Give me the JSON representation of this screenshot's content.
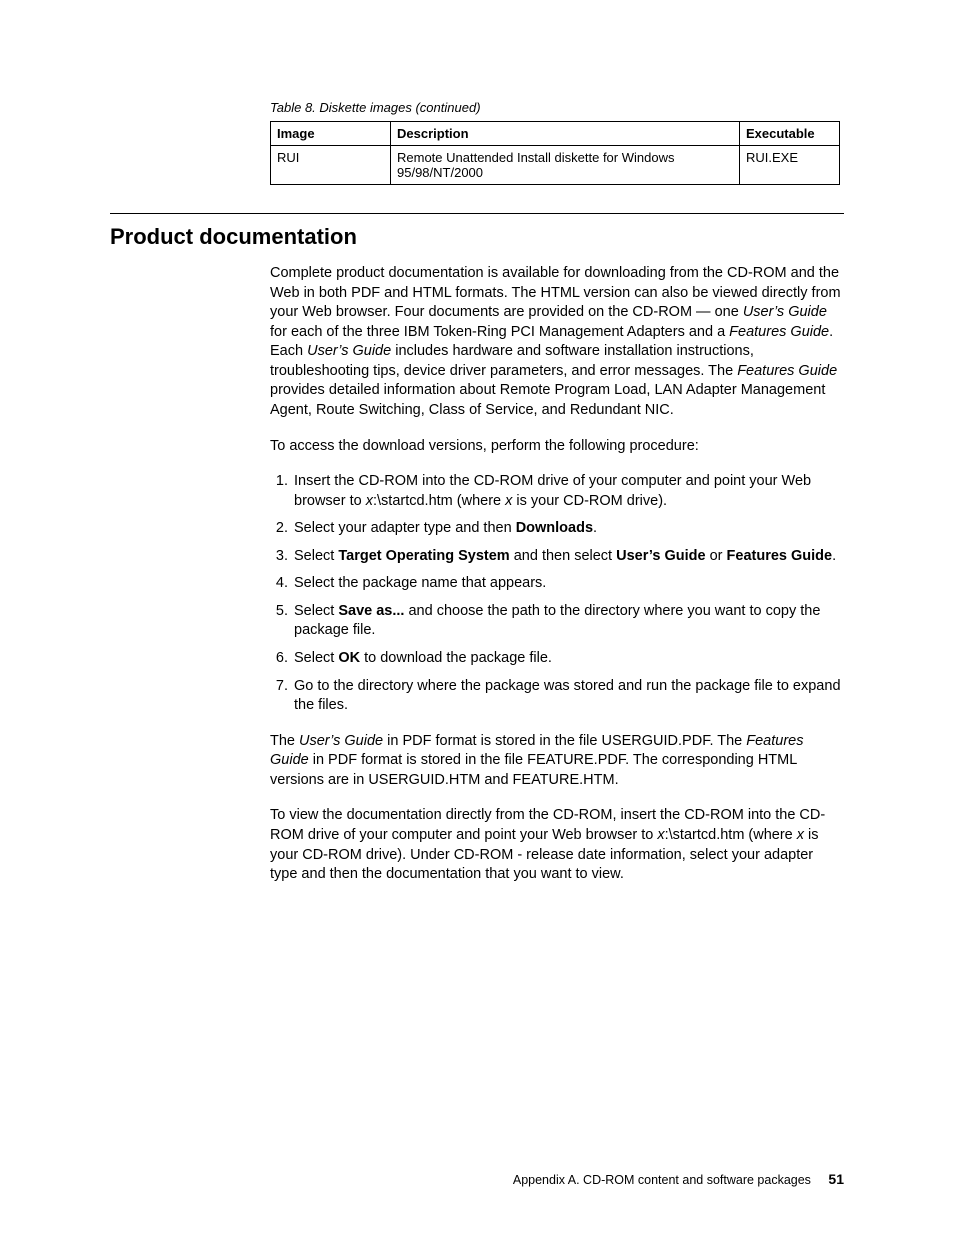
{
  "table": {
    "caption": "Table 8. Diskette images  (continued)",
    "headers": {
      "image": "Image",
      "description": "Description",
      "executable": "Executable"
    },
    "row": {
      "image": "RUI",
      "description": "Remote Unattended Install diskette for Windows 95/98/NT/2000",
      "executable": "RUI.EXE"
    }
  },
  "section": {
    "title": "Product documentation",
    "p1_a": "Complete product documentation is available for downloading from the CD-ROM and the Web in both PDF and HTML formats. The HTML version can also be viewed directly from your Web browser. Four documents are provided on the CD-ROM — one ",
    "p1_ug": "User’s Guide",
    "p1_b": " for each of the three IBM Token-Ring PCI Management Adapters and a ",
    "p1_fg": "Features Guide",
    "p1_c": ". Each ",
    "p1_ug2": "User’s Guide",
    "p1_d": " includes hardware and software installation instructions, troubleshooting tips, device driver parameters, and error messages. The ",
    "p1_fg2": "Features Guide",
    "p1_e": " provides detailed information about Remote Program Load, LAN Adapter Management Agent, Route Switching, Class of Service, and Redundant NIC.",
    "p2": "To access the download versions, perform the following procedure:",
    "steps": {
      "s1a": "Insert the CD-ROM into the CD-ROM drive of your computer and point your Web browser to ",
      "s1x1": "x",
      "s1b": ":\\startcd.htm (where ",
      "s1x2": "x",
      "s1c": " is your CD-ROM drive).",
      "s2a": "Select your adapter type and then ",
      "s2b": "Downloads",
      "s2c": ".",
      "s3a": "Select ",
      "s3b": "Target Operating System",
      "s3c": " and then select ",
      "s3d": "User’s Guide",
      "s3e": " or ",
      "s3f": "Features Guide",
      "s3g": ".",
      "s4": "Select the package name that appears.",
      "s5a": "Select ",
      "s5b": "Save as...",
      "s5c": " and choose the path to the directory where you want to copy the package file.",
      "s6a": "Select ",
      "s6b": "OK",
      "s6c": " to download the package file.",
      "s7": "Go to the directory where the package was stored and run the package file to expand the files."
    },
    "p3_a": "The ",
    "p3_ug": "User’s Guide",
    "p3_b": " in PDF format is stored in the file USERGUID.PDF. The ",
    "p3_fg": "Features Guide",
    "p3_c": " in PDF format is stored in the file FEATURE.PDF. The corresponding HTML versions are in USERGUID.HTM and FEATURE.HTM.",
    "p4_a": "To view the documentation directly from the CD-ROM, insert the CD-ROM into the CD-ROM drive of your computer and point your Web browser to ",
    "p4_x1": "x",
    "p4_b": ":\\startcd.htm (where ",
    "p4_x2": "x",
    "p4_c": " is your CD-ROM drive). Under CD-ROM - release date information, select your adapter type and then the documentation that you want to view."
  },
  "footer": {
    "text": "Appendix A. CD-ROM content and software packages",
    "page": "51"
  }
}
